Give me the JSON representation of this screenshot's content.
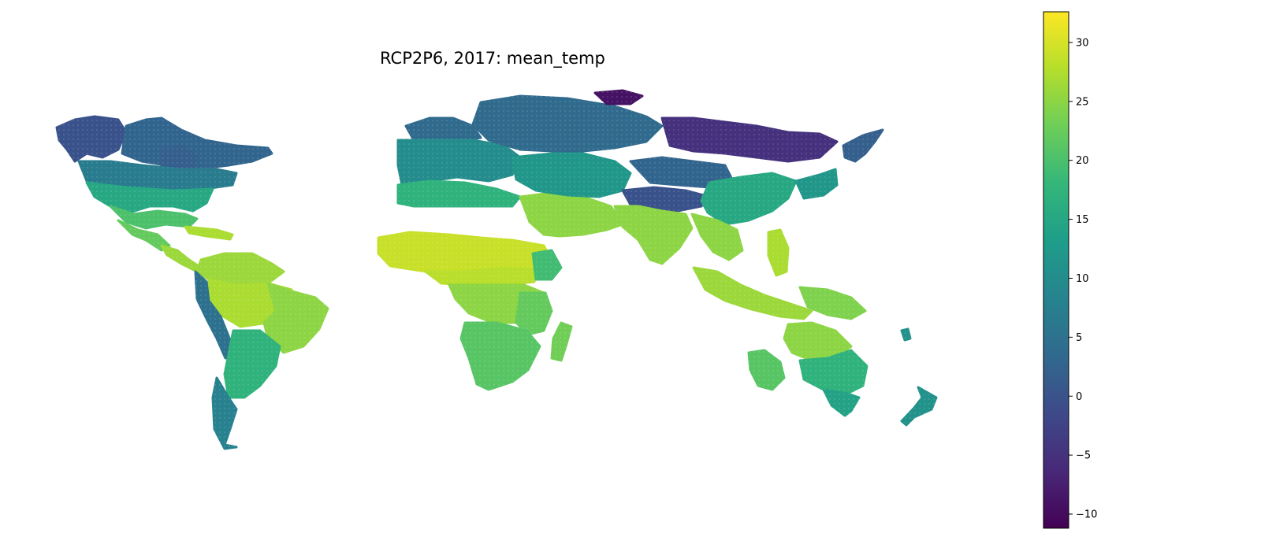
{
  "title": "RCP2P6, 2017: mean_temp",
  "colorbar": {
    "colormap": "viridis",
    "min": -11.2,
    "max": 32.6,
    "ticks": [
      -10,
      -5,
      0,
      5,
      10,
      15,
      20,
      25,
      30
    ],
    "tick_labels": [
      "−10",
      "−5",
      "0",
      "5",
      "10",
      "15",
      "20",
      "25",
      "30"
    ]
  },
  "colors": {
    "viridis_stops": [
      "#440154",
      "#482878",
      "#3e4989",
      "#31688e",
      "#26828e",
      "#1f9e89",
      "#35b779",
      "#6ece58",
      "#b5de2b",
      "#fde725"
    ]
  },
  "regions": [
    {
      "name": "alaska",
      "temp": 0
    },
    {
      "name": "northern-canada",
      "temp": 3
    },
    {
      "name": "hudson-region",
      "temp": 2
    },
    {
      "name": "southern-canada",
      "temp": 7
    },
    {
      "name": "usa",
      "temp": 15
    },
    {
      "name": "usa-south",
      "temp": 20
    },
    {
      "name": "mexico",
      "temp": 22
    },
    {
      "name": "central-america",
      "temp": 26
    },
    {
      "name": "caribbean",
      "temp": 27
    },
    {
      "name": "northern-south-america",
      "temp": 26
    },
    {
      "name": "amazon",
      "temp": 27
    },
    {
      "name": "brazil-east",
      "temp": 25
    },
    {
      "name": "andes",
      "temp": 5
    },
    {
      "name": "argentina",
      "temp": 17
    },
    {
      "name": "patagonia",
      "temp": 8
    },
    {
      "name": "europe",
      "temp": 10
    },
    {
      "name": "scandinavia",
      "temp": 4
    },
    {
      "name": "mediterranean",
      "temp": 17
    },
    {
      "name": "sahara",
      "temp": 29
    },
    {
      "name": "sahel",
      "temp": 28
    },
    {
      "name": "ethiopian-highlands",
      "temp": 19
    },
    {
      "name": "central-africa",
      "temp": 25
    },
    {
      "name": "east-africa",
      "temp": 22
    },
    {
      "name": "southern-africa",
      "temp": 21
    },
    {
      "name": "madagascar",
      "temp": 23
    },
    {
      "name": "middle-east",
      "temp": 25
    },
    {
      "name": "central-asia",
      "temp": 12
    },
    {
      "name": "western-siberia",
      "temp": 4
    },
    {
      "name": "eastern-siberia",
      "temp": -5
    },
    {
      "name": "arctic-islands",
      "temp": -9
    },
    {
      "name": "mongolia",
      "temp": 3
    },
    {
      "name": "tibet",
      "temp": 0
    },
    {
      "name": "china-east",
      "temp": 15
    },
    {
      "name": "japan-korea",
      "temp": 12
    },
    {
      "name": "india",
      "temp": 25
    },
    {
      "name": "southeast-asia",
      "temp": 25
    },
    {
      "name": "indonesia",
      "temp": 26
    },
    {
      "name": "philippines",
      "temp": 27
    },
    {
      "name": "new-guinea",
      "temp": 24
    },
    {
      "name": "northern-australia",
      "temp": 25
    },
    {
      "name": "western-australia",
      "temp": 21
    },
    {
      "name": "eastern-australia",
      "temp": 17
    },
    {
      "name": "southeast-australia",
      "temp": 14
    },
    {
      "name": "new-zealand",
      "temp": 11
    },
    {
      "name": "kamchatka",
      "temp": 2
    }
  ]
}
